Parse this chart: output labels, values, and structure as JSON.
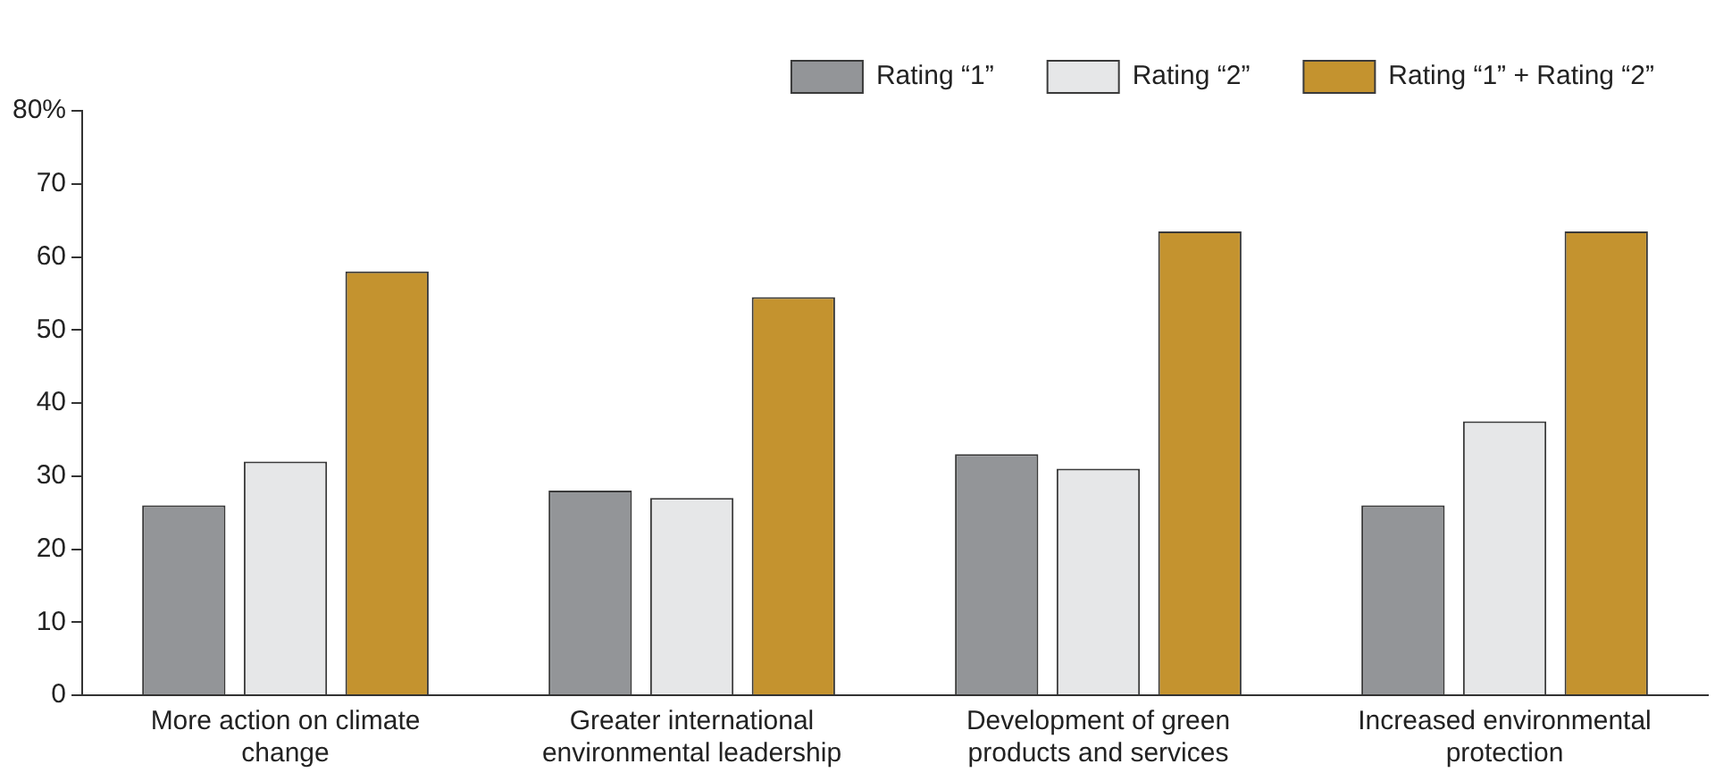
{
  "chart_data": {
    "type": "bar",
    "categories": [
      "More action on climate change",
      "Greater international environmental leadership",
      "Development of green products and services",
      "Increased environmental protection"
    ],
    "series": [
      {
        "name": "Rating “1”",
        "color": "#939598",
        "values": [
          26,
          28,
          33,
          26
        ]
      },
      {
        "name": "Rating “2”",
        "color": "#e6e7e8",
        "values": [
          32,
          27,
          31,
          37.5
        ]
      },
      {
        "name": "Rating “1” + Rating “2”",
        "color": "#c4932f",
        "values": [
          58,
          54.5,
          63.5,
          63.5
        ]
      }
    ],
    "ylim": [
      0,
      80
    ],
    "yticks": [
      0,
      10,
      20,
      30,
      40,
      50,
      60,
      70,
      {
        "value": 80,
        "label": "80%"
      }
    ],
    "grid": false,
    "legend": "top"
  }
}
